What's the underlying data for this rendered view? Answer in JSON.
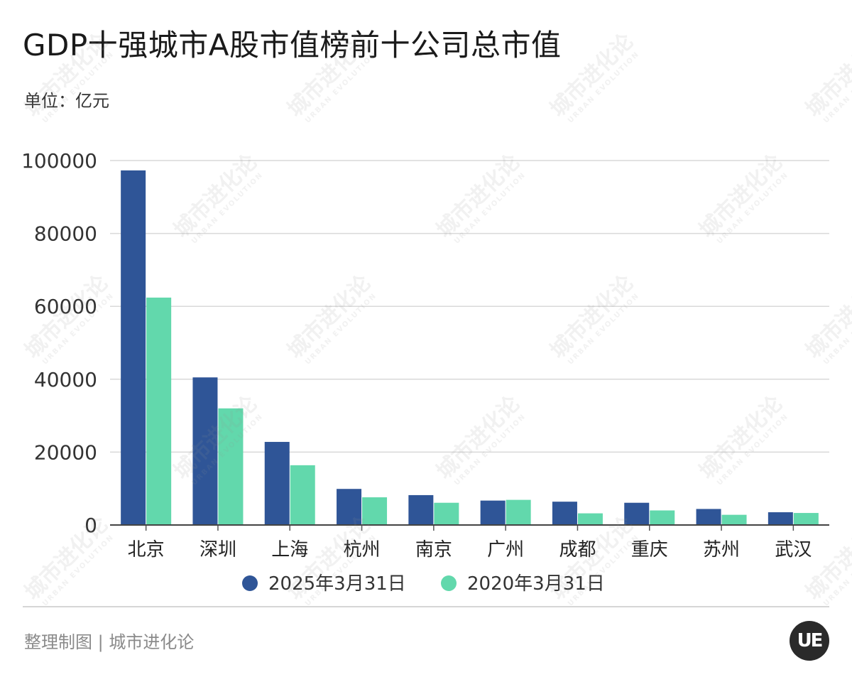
{
  "title": "GDP十强城市A股市值榜前十公司总市值",
  "unit_label": "单位：亿元",
  "footer": "整理制图 | 城市进化论",
  "logo_text": "UE",
  "watermark_text": "城市进化论",
  "watermark_sub": "URBAN EVOLUTION",
  "colors": {
    "series_2025": "#2f5597",
    "series_2020": "#62d8ac",
    "grid": "#d9d9d9"
  },
  "chart_data": {
    "type": "bar",
    "categories": [
      "北京",
      "深圳",
      "上海",
      "杭州",
      "南京",
      "广州",
      "成都",
      "重庆",
      "苏州",
      "武汉"
    ],
    "series": [
      {
        "name": "2025年3月31日",
        "values": [
          97300,
          40500,
          22800,
          9900,
          8200,
          6700,
          6400,
          6100,
          4400,
          3500
        ]
      },
      {
        "name": "2020年3月31日",
        "values": [
          62400,
          32000,
          16400,
          7600,
          6100,
          6900,
          3200,
          4000,
          2800,
          3300
        ]
      }
    ],
    "yticks": [
      "0",
      "20000",
      "40000",
      "60000",
      "80000",
      "100000"
    ],
    "ylim": [
      0,
      100000
    ],
    "grid": true,
    "legend_position": "bottom"
  }
}
